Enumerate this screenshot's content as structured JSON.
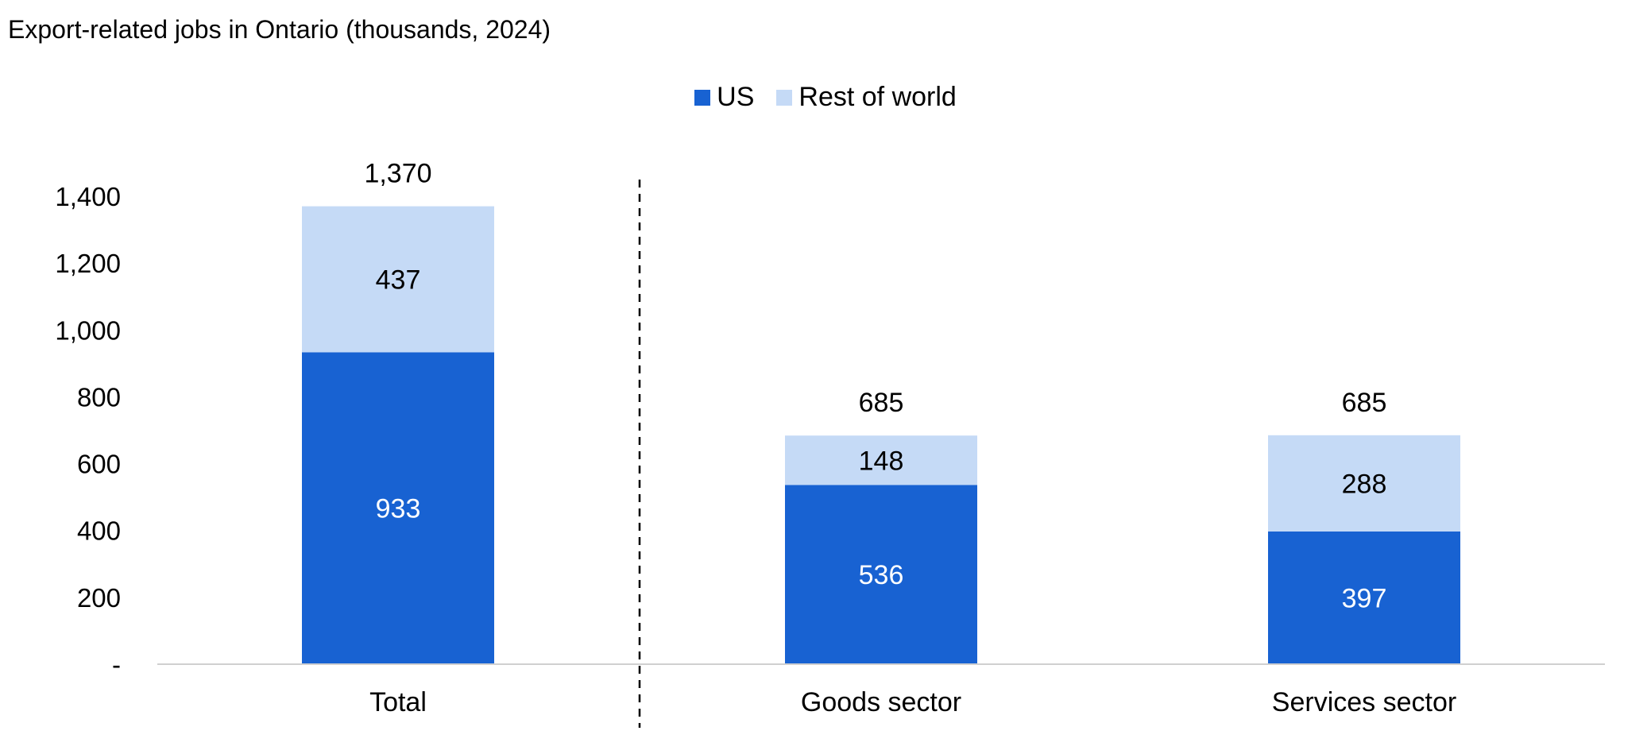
{
  "chart_data": {
    "type": "bar",
    "stacked": true,
    "title": "Export-related jobs in Ontario (thousands, 2024)",
    "categories": [
      "Total",
      "Goods sector",
      "Services sector"
    ],
    "series": [
      {
        "name": "US",
        "values": [
          933,
          536,
          397
        ],
        "color": "#1862D2",
        "label_color": "#ffffff"
      },
      {
        "name": "Rest of world",
        "values": [
          437,
          148,
          288
        ],
        "color": "#C5DAF6",
        "label_color": "#000000"
      }
    ],
    "totals": [
      1370,
      685,
      685
    ],
    "total_labels": [
      "1,370",
      "685",
      "685"
    ],
    "ylim": [
      0,
      1400
    ],
    "y_ticks": [
      0,
      200,
      400,
      600,
      800,
      1000,
      1200,
      1400
    ],
    "y_tick_labels": [
      "-",
      "200",
      "400",
      "600",
      "800",
      "1,000",
      "1,200",
      "1,400"
    ],
    "grid": false,
    "legend_position": "top-center",
    "separator": "dashed vertical line between Total and Goods sector",
    "xlabel": "",
    "ylabel": ""
  }
}
